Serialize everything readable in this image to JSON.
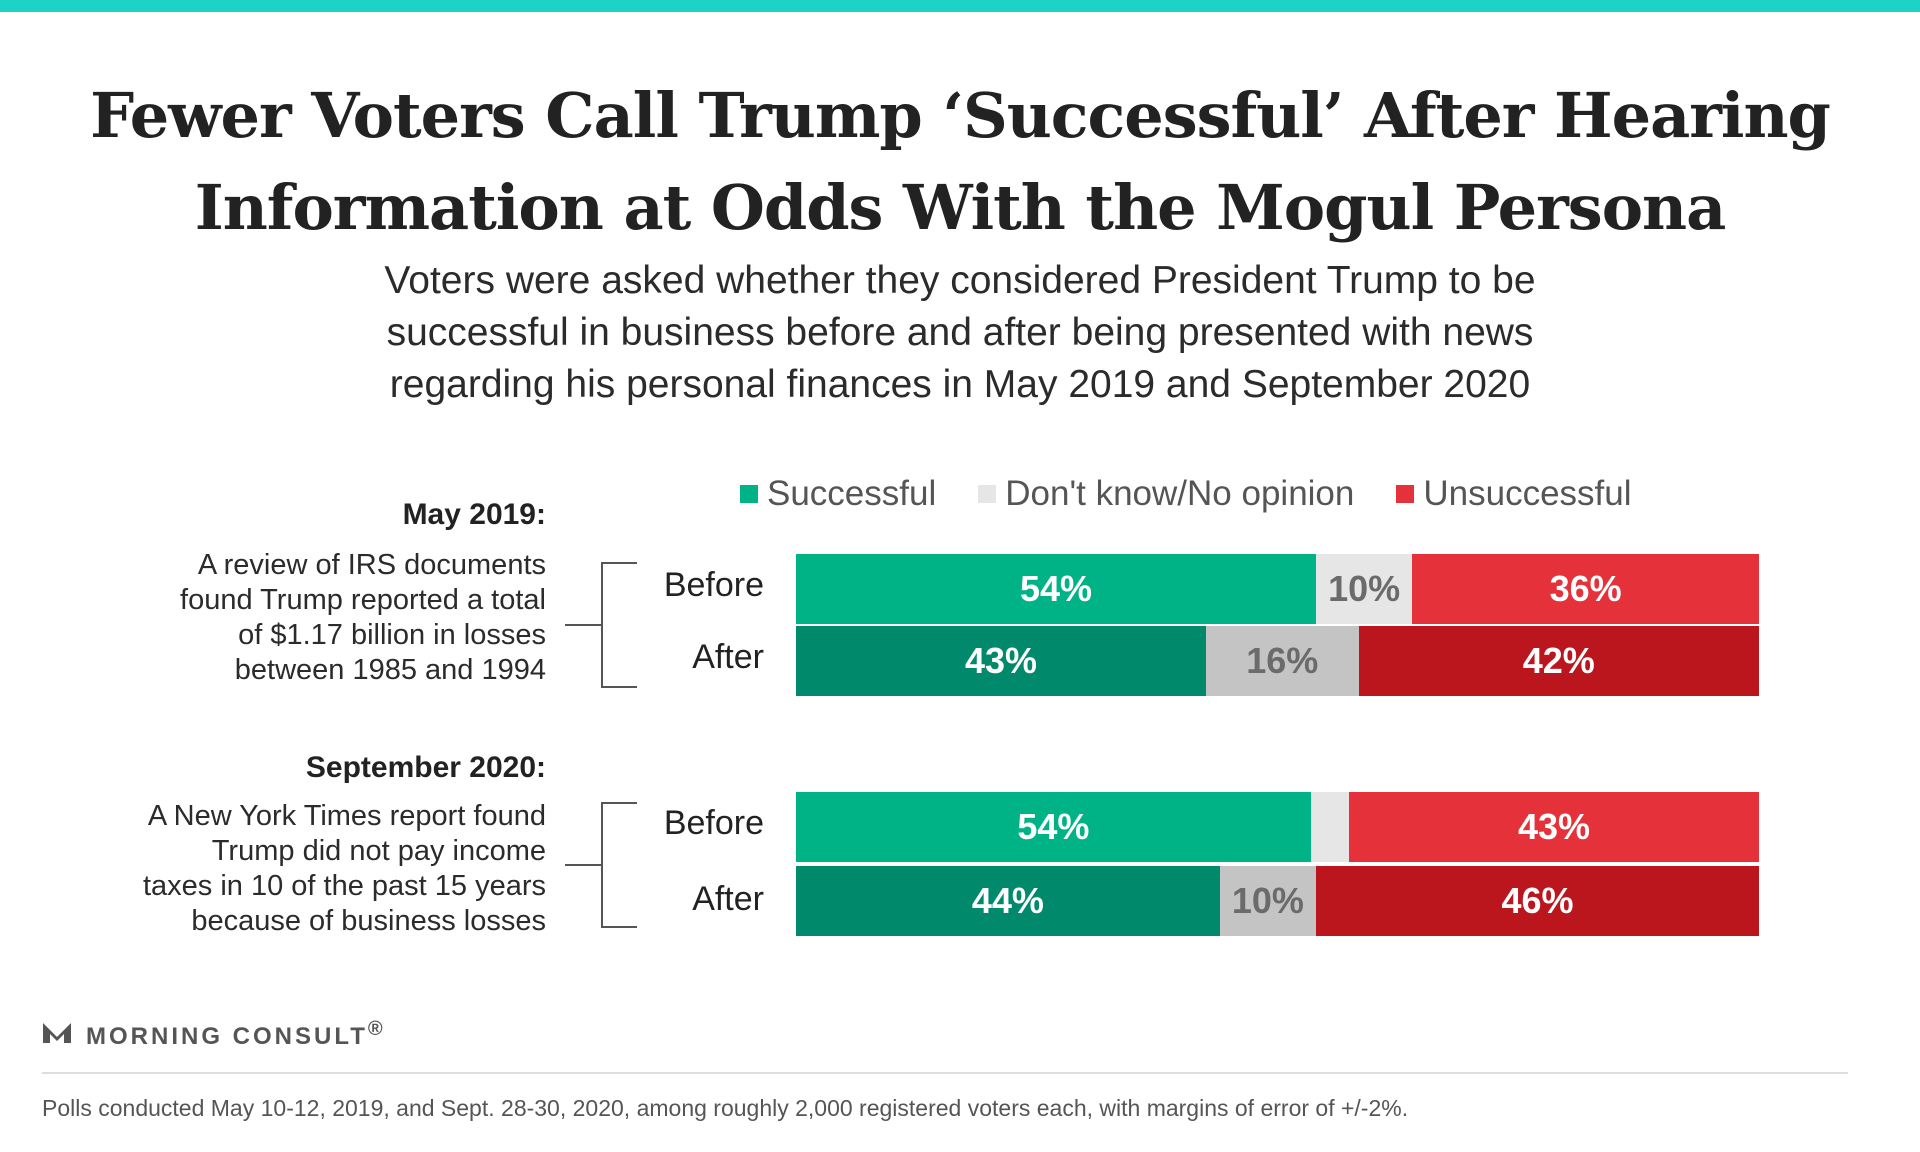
{
  "title": {
    "line1": "Fewer Voters Call Trump ‘Successful’ After Hearing",
    "line2": "Information at Odds With the Mogul Persona"
  },
  "subtitle": {
    "line1": "Voters were asked whether they considered President Trump to be",
    "line2": "successful in business before and after being presented with news",
    "line3": "regarding his personal finances in May 2019 and September 2020"
  },
  "colors": {
    "accent_rule": "#1dd3c7",
    "successful_before": "#00b386",
    "successful_after": "#00896a",
    "dontknow_before": "#e6e6e6",
    "dontknow_after": "#c4c4c4",
    "unsuccessful_before": "#e5313a",
    "unsuccessful_after": "#bb161d"
  },
  "chart_data": {
    "type": "bar",
    "orientation": "horizontal",
    "stacked": true,
    "legend_position": "top",
    "legend": [
      "Successful",
      "Don't know/No opinion",
      "Unsuccessful"
    ],
    "groups": [
      {
        "heading": "May 2019:",
        "description_lines": [
          "A review of IRS documents",
          "found Trump reported a total",
          "of $1.17 billion in losses",
          "between 1985 and 1994"
        ],
        "rows": [
          {
            "label": "Before",
            "values": [
              54,
              10,
              36
            ],
            "labels": [
              "54%",
              "10%",
              "36%"
            ]
          },
          {
            "label": "After",
            "values": [
              43,
              16,
              42
            ],
            "labels": [
              "43%",
              "16%",
              "42%"
            ]
          }
        ]
      },
      {
        "heading": "September 2020:",
        "description_lines": [
          "A New York Times report found",
          "Trump did not pay income",
          "taxes in 10 of the past 15 years",
          "because of business losses"
        ],
        "rows": [
          {
            "label": "Before",
            "values": [
              54,
              4,
              43
            ],
            "labels": [
              "54%",
              "",
              "43%"
            ]
          },
          {
            "label": "After",
            "values": [
              44,
              10,
              46
            ],
            "labels": [
              "44%",
              "10%",
              "46%"
            ]
          }
        ]
      }
    ]
  },
  "brand": {
    "name": "MORNING CONSULT",
    "mark": "®"
  },
  "footnote": "Polls conducted May 10-12, 2019, and Sept. 28-30, 2020, among roughly 2,000 registered voters each, with margins of error of +/-2%."
}
